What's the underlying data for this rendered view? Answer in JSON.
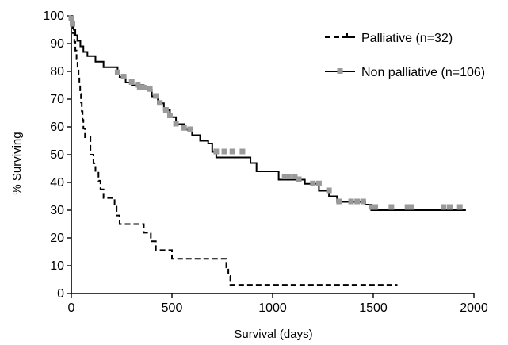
{
  "chart_data": {
    "type": "line",
    "title": "",
    "xlabel": "Survival (days)",
    "ylabel": "% Surviving",
    "xlim": [
      0,
      2000
    ],
    "ylim": [
      0,
      100
    ],
    "x_ticks": [
      0,
      500,
      1000,
      1500,
      2000
    ],
    "y_ticks": [
      0,
      10,
      20,
      30,
      40,
      50,
      60,
      70,
      80,
      90,
      100
    ],
    "grid": false,
    "legend_position": "top-right",
    "legend": [
      {
        "label": "Palliative (n=32)",
        "style": "dashed"
      },
      {
        "label": "Non palliative (n=106)",
        "style": "solid"
      }
    ],
    "series": [
      {
        "name": "Palliative (n=32)",
        "style": "dashed",
        "color": "#000000",
        "steps": [
          [
            0,
            100
          ],
          [
            3,
            96.9
          ],
          [
            8,
            93.8
          ],
          [
            15,
            90.6
          ],
          [
            20,
            87.5
          ],
          [
            26,
            84.4
          ],
          [
            31,
            81.3
          ],
          [
            36,
            78.1
          ],
          [
            40,
            75
          ],
          [
            44,
            71.9
          ],
          [
            48,
            68.8
          ],
          [
            52,
            65.6
          ],
          [
            56,
            62.5
          ],
          [
            60,
            59.4
          ],
          [
            68,
            56.3
          ],
          [
            95,
            50
          ],
          [
            110,
            46.9
          ],
          [
            120,
            43.8
          ],
          [
            135,
            40.6
          ],
          [
            145,
            37.5
          ],
          [
            160,
            34.4
          ],
          [
            215,
            31.3
          ],
          [
            225,
            28.1
          ],
          [
            240,
            25
          ],
          [
            360,
            21.9
          ],
          [
            395,
            18.8
          ],
          [
            420,
            15.6
          ],
          [
            500,
            12.5
          ],
          [
            770,
            9.4
          ],
          [
            780,
            6.3
          ],
          [
            790,
            3.1
          ],
          [
            1620,
            3.1
          ]
        ],
        "censored": []
      },
      {
        "name": "Non palliative (n=106)",
        "style": "solid",
        "color": "#000000",
        "steps": [
          [
            0,
            100
          ],
          [
            5,
            97
          ],
          [
            12,
            95
          ],
          [
            20,
            93
          ],
          [
            30,
            91
          ],
          [
            45,
            89
          ],
          [
            60,
            87
          ],
          [
            80,
            85.5
          ],
          [
            120,
            83.5
          ],
          [
            160,
            81.5
          ],
          [
            230,
            79.5
          ],
          [
            240,
            78
          ],
          [
            270,
            76
          ],
          [
            300,
            75
          ],
          [
            360,
            73.5
          ],
          [
            400,
            71
          ],
          [
            430,
            68.5
          ],
          [
            460,
            66
          ],
          [
            490,
            63.5
          ],
          [
            520,
            61
          ],
          [
            560,
            59
          ],
          [
            600,
            57
          ],
          [
            640,
            55
          ],
          [
            680,
            54
          ],
          [
            700,
            51
          ],
          [
            720,
            49
          ],
          [
            890,
            47
          ],
          [
            920,
            44
          ],
          [
            1030,
            41
          ],
          [
            1160,
            39.5
          ],
          [
            1230,
            37
          ],
          [
            1280,
            35
          ],
          [
            1320,
            33
          ],
          [
            1460,
            32
          ],
          [
            1490,
            30
          ],
          [
            1960,
            30
          ]
        ],
        "censored": [
          [
            0,
            99
          ],
          [
            6,
            97
          ],
          [
            230,
            79.5
          ],
          [
            260,
            78
          ],
          [
            300,
            76
          ],
          [
            330,
            75
          ],
          [
            340,
            74
          ],
          [
            360,
            74
          ],
          [
            390,
            73.5
          ],
          [
            420,
            71
          ],
          [
            440,
            68.5
          ],
          [
            470,
            66
          ],
          [
            490,
            64
          ],
          [
            520,
            61
          ],
          [
            560,
            59.5
          ],
          [
            590,
            59
          ],
          [
            720,
            51
          ],
          [
            760,
            51
          ],
          [
            800,
            51
          ],
          [
            850,
            51
          ],
          [
            1060,
            42
          ],
          [
            1080,
            42
          ],
          [
            1110,
            42
          ],
          [
            1130,
            41
          ],
          [
            1200,
            39.5
          ],
          [
            1230,
            39.5
          ],
          [
            1280,
            37
          ],
          [
            1330,
            33
          ],
          [
            1390,
            33
          ],
          [
            1420,
            33
          ],
          [
            1450,
            33
          ],
          [
            1490,
            31
          ],
          [
            1510,
            31
          ],
          [
            1590,
            31
          ],
          [
            1670,
            31
          ],
          [
            1690,
            31
          ],
          [
            1850,
            31
          ],
          [
            1880,
            31
          ],
          [
            1930,
            31
          ]
        ]
      }
    ]
  }
}
